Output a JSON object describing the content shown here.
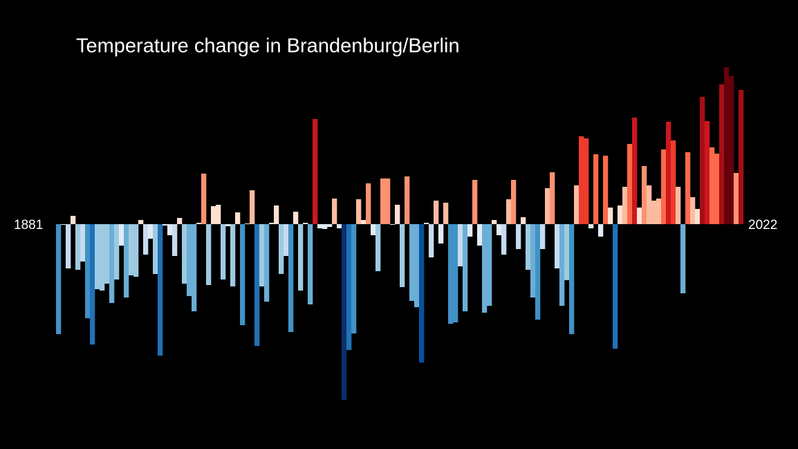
{
  "chart_data": {
    "type": "bar",
    "title": "Temperature change in Brandenburg/Berlin",
    "xlim": [
      1881,
      2022
    ],
    "ylim": [
      -2.61,
      2.34
    ],
    "colormap": [
      "#08306b",
      "#08519c",
      "#2171b5",
      "#4292c6",
      "#6baed6",
      "#9ecae1",
      "#c6dbef",
      "#deebf7",
      "#fee0d2",
      "#fcbba1",
      "#fc9272",
      "#fb6a4a",
      "#ef3b2c",
      "#cb181d",
      "#a50f15",
      "#67000d"
    ],
    "values": [
      -1.59,
      -0.01,
      -0.64,
      0.12,
      -0.66,
      -0.54,
      -1.36,
      -1.74,
      -0.94,
      -0.96,
      -0.86,
      -1.14,
      -0.8,
      -0.31,
      -1.06,
      -0.74,
      -0.76,
      0.06,
      -0.44,
      -0.21,
      -0.72,
      -1.9,
      -0.02,
      -0.16,
      -0.46,
      0.09,
      -0.86,
      -1.04,
      -1.26,
      0.02,
      0.73,
      -0.88,
      0.26,
      0.28,
      -0.8,
      -0.03,
      -0.9,
      0.17,
      -1.46,
      0.01,
      0.49,
      -1.76,
      -0.9,
      -1.12,
      0.02,
      0.27,
      -0.72,
      -0.46,
      -1.56,
      0.18,
      -0.96,
      0.02,
      -1.16,
      1.52,
      -0.06,
      -0.07,
      -0.04,
      0.37,
      -0.06,
      -2.54,
      -1.82,
      -1.58,
      0.36,
      0.06,
      0.59,
      -0.16,
      -0.68,
      0.66,
      0.66,
      -0.01,
      0.28,
      -0.91,
      0.69,
      -1.11,
      -1.2,
      -2.0,
      0.02,
      -0.48,
      0.34,
      -0.28,
      0.31,
      -1.44,
      -1.42,
      -0.61,
      -1.26,
      -0.18,
      0.64,
      -0.31,
      -1.28,
      -1.18,
      0.06,
      -0.16,
      -0.44,
      0.36,
      0.64,
      -0.36,
      0.1,
      -0.66,
      -1.06,
      -1.38,
      -0.36,
      0.52,
      0.75,
      -0.64,
      -1.18,
      -0.81,
      -1.59,
      0.56,
      1.27,
      1.24,
      -0.06,
      1.01,
      -0.18,
      0.99,
      0.24,
      -1.8,
      0.27,
      0.54,
      1.16,
      1.54,
      0.24,
      0.84,
      0.56,
      0.34,
      0.37,
      1.08,
      1.48,
      1.21,
      0.54,
      -1.0,
      1.04,
      0.39,
      0.22,
      1.84,
      1.49,
      1.11,
      1.02,
      2.02,
      2.27,
      2.14,
      0.74,
      1.94
    ]
  }
}
